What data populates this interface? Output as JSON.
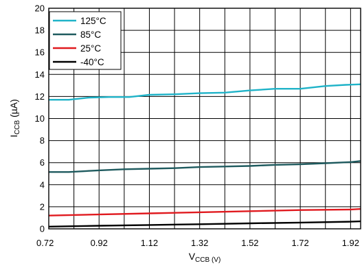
{
  "chart_data": {
    "type": "line",
    "xlabel": {
      "main": "V",
      "sub": "CCB (V)"
    },
    "ylabel": {
      "main": "I",
      "sub": "CCB",
      "unit": " (µA)"
    },
    "xlim": [
      0.72,
      1.96
    ],
    "ylim": [
      0,
      20
    ],
    "x_ticks": [
      0.72,
      0.92,
      1.12,
      1.32,
      1.52,
      1.72,
      1.92
    ],
    "x_tick_labels": [
      "0.72",
      "0.92",
      "1.12",
      "1.32",
      "1.52",
      "1.72",
      "1.92"
    ],
    "x_grid": [
      0.72,
      0.82,
      0.92,
      1.02,
      1.12,
      1.22,
      1.32,
      1.42,
      1.52,
      1.62,
      1.72,
      1.82,
      1.92
    ],
    "y_ticks": [
      0,
      2,
      4,
      6,
      8,
      10,
      12,
      14,
      16,
      18,
      20
    ],
    "y_tick_labels": [
      "0",
      "2",
      "4",
      "6",
      "8",
      "10",
      "12",
      "14",
      "16",
      "18",
      "20"
    ],
    "grid": true,
    "legend_position": "top-left",
    "series": [
      {
        "name": "125°C",
        "color": "#1fb3c8",
        "x": [
          0.72,
          0.8,
          0.88,
          0.96,
          1.04,
          1.12,
          1.22,
          1.32,
          1.42,
          1.52,
          1.62,
          1.72,
          1.82,
          1.9,
          1.96
        ],
        "y": [
          11.7,
          11.7,
          11.9,
          11.95,
          11.95,
          12.15,
          12.2,
          12.3,
          12.35,
          12.55,
          12.7,
          12.7,
          12.95,
          13.05,
          13.1
        ]
      },
      {
        "name": "85°C",
        "color": "#1e5a5e",
        "x": [
          0.72,
          0.8,
          0.92,
          1.02,
          1.12,
          1.22,
          1.32,
          1.42,
          1.52,
          1.62,
          1.72,
          1.82,
          1.92,
          1.96
        ],
        "y": [
          5.15,
          5.15,
          5.3,
          5.4,
          5.45,
          5.5,
          5.6,
          5.65,
          5.7,
          5.8,
          5.85,
          5.95,
          6.05,
          6.15
        ]
      },
      {
        "name": "25°C",
        "color": "#e0191e",
        "x": [
          0.72,
          0.92,
          1.12,
          1.32,
          1.52,
          1.72,
          1.92,
          1.96
        ],
        "y": [
          1.2,
          1.3,
          1.4,
          1.5,
          1.6,
          1.7,
          1.75,
          1.8
        ]
      },
      {
        "name": "-40°C",
        "color": "#000000",
        "x": [
          0.72,
          0.92,
          1.12,
          1.32,
          1.52,
          1.72,
          1.92,
          1.96
        ],
        "y": [
          0.2,
          0.28,
          0.35,
          0.42,
          0.5,
          0.57,
          0.65,
          0.68
        ]
      }
    ]
  }
}
